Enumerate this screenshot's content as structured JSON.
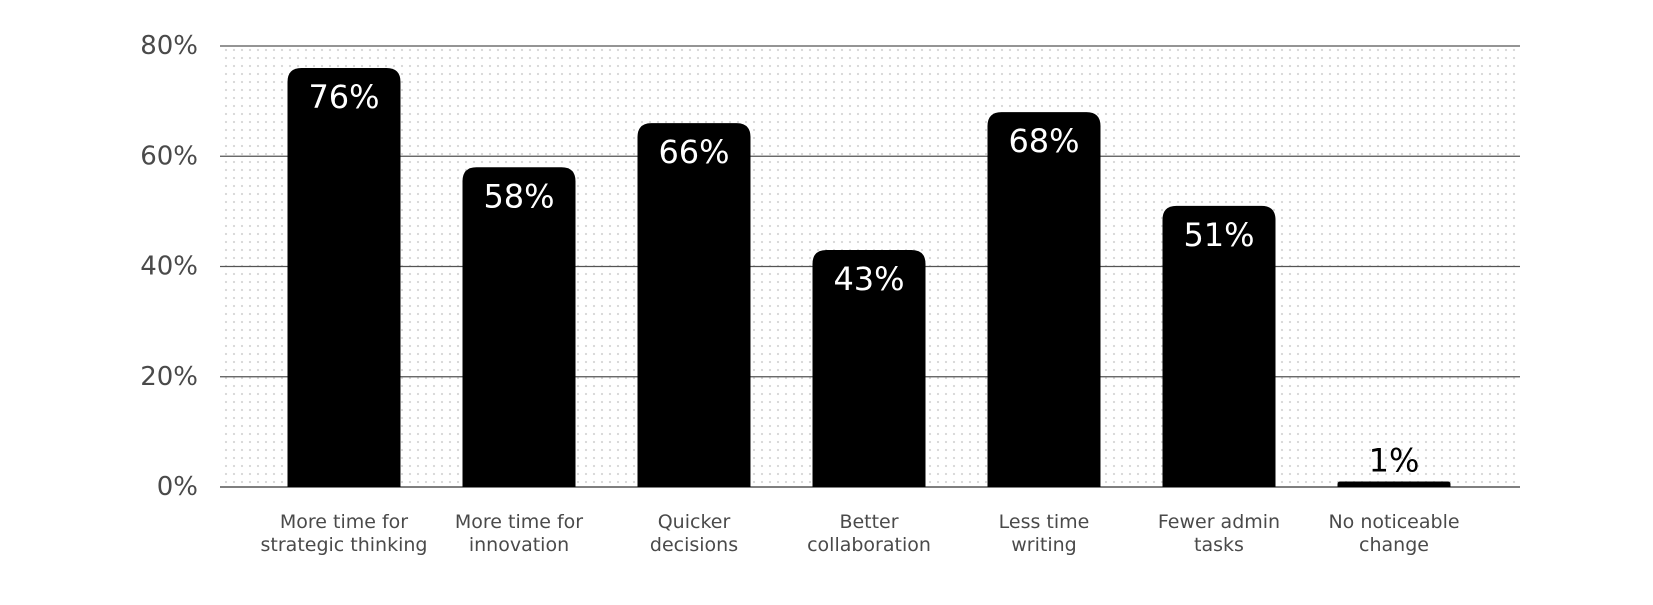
{
  "chart_data": {
    "type": "bar",
    "title": "",
    "xlabel": "",
    "ylabel": "",
    "categories": [
      "More time for strategic thinking",
      "More time for innovation",
      "Quicker decisions",
      "Better collaboration",
      "Less time writing",
      "Fewer admin tasks",
      "No noticeable change"
    ],
    "category_lines": [
      [
        "More time for",
        "strategic thinking"
      ],
      [
        "More time for",
        "innovation"
      ],
      [
        "Quicker",
        "decisions"
      ],
      [
        "Better",
        "collaboration"
      ],
      [
        "Less time",
        "writing"
      ],
      [
        "Fewer admin",
        "tasks"
      ],
      [
        "No noticeable",
        "change"
      ]
    ],
    "values": [
      76,
      58,
      66,
      43,
      68,
      51,
      1
    ],
    "data_labels": [
      "76%",
      "58%",
      "66%",
      "43%",
      "68%",
      "51%",
      "1%"
    ],
    "ylim": [
      0,
      80
    ],
    "yticks": [
      0,
      20,
      40,
      60,
      80
    ],
    "ytick_labels": [
      "0%",
      "20%",
      "40%",
      "60%",
      "80%"
    ],
    "grid": true,
    "legend": "none",
    "colors": {
      "bar": "#000000",
      "label_inside": "#ffffff",
      "label_outside": "#000000",
      "gridline": "#555555",
      "dot_pattern": "#d6d6d6",
      "axis_text": "#4a4a4a"
    }
  }
}
